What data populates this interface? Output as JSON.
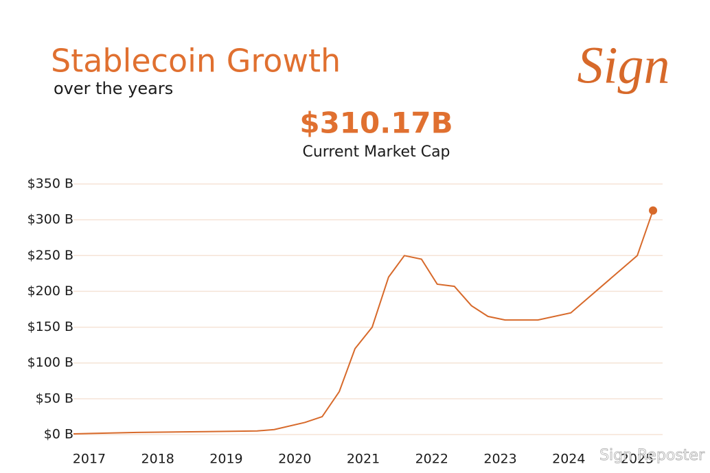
{
  "chart_data": {
    "type": "line",
    "title": "Stablecoin Growth",
    "subtitle": "over the years",
    "headline": "$310.17B",
    "headline_caption": "Current Market Cap",
    "logo": "Sign",
    "watermark": "Sign Reposter",
    "color": "#d7692a",
    "grid": true,
    "x": [
      2016.77,
      2017.7,
      2018.7,
      2019.45,
      2019.7,
      2020.15,
      2020.4,
      2020.65,
      2020.88,
      2021.13,
      2021.37,
      2021.6,
      2021.85,
      2022.08,
      2022.33,
      2022.58,
      2022.82,
      2023.07,
      2023.3,
      2023.55,
      2024.03,
      2025.0,
      2025.23
    ],
    "values": [
      1,
      3,
      4,
      5,
      7,
      17,
      25,
      60,
      120,
      150,
      220,
      250,
      245,
      210,
      207,
      180,
      165,
      160,
      160,
      160,
      170,
      250,
      313
    ],
    "xlim": [
      2016.77,
      2025.37
    ],
    "xticks": [
      2017,
      2018,
      2019,
      2020,
      2021,
      2022,
      2023,
      2024,
      2025
    ],
    "ylim": [
      0,
      350
    ],
    "yticks": [
      {
        "value": 0,
        "label": "$0 B"
      },
      {
        "value": 50,
        "label": "$50 B"
      },
      {
        "value": 100,
        "label": "$100 B"
      },
      {
        "value": 150,
        "label": "$150 B"
      },
      {
        "value": 200,
        "label": "$200 B"
      },
      {
        "value": 250,
        "label": "$250 B"
      },
      {
        "value": 300,
        "label": "$300 B"
      },
      {
        "value": 350,
        "label": "$350 B"
      }
    ]
  }
}
